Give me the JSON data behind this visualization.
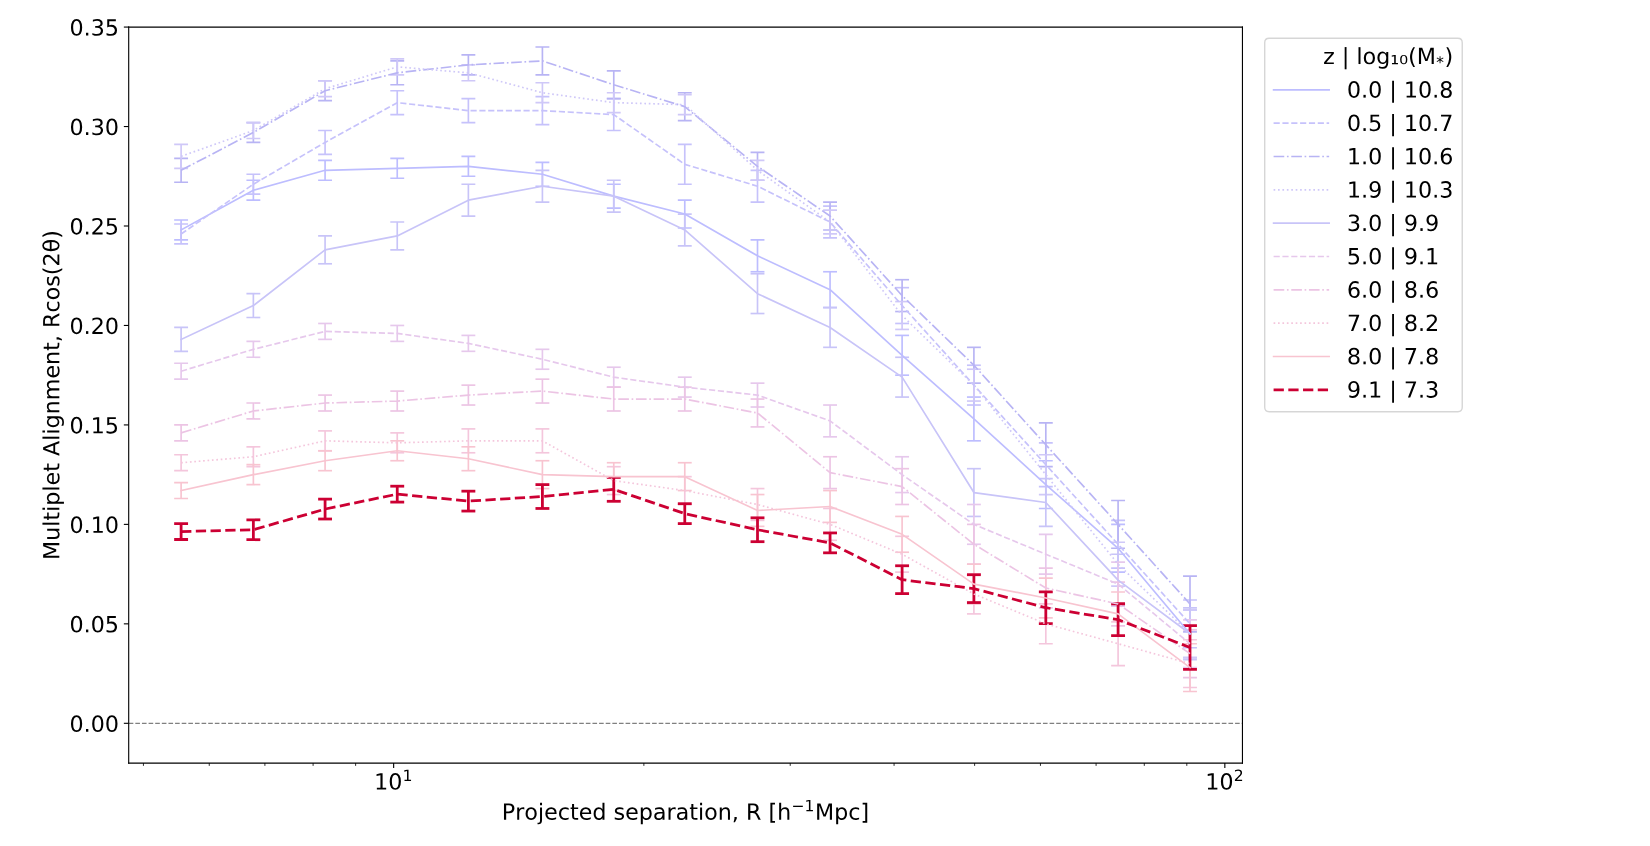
{
  "chart_data": {
    "type": "line",
    "xlabel": "Projected separation, R [h$^{−1}$Mpc]",
    "ylabel": "Multiplet Alignment, Rcos(2θ)",
    "legend_title": "z | log₁₀(M$_{*}$)",
    "legend": "right",
    "log": "x",
    "grid": false,
    "marker": "none",
    "x": [
      5.55,
      6.78,
      8.27,
      10.1,
      12.3,
      15.1,
      18.4,
      22.4,
      27.4,
      33.5,
      40.9,
      49.9,
      60.9,
      74.4,
      90.8
    ],
    "xlim": [
      4.8,
      105
    ],
    "xticks": [
      {
        "value": 10,
        "label": "10$^{1}$"
      },
      {
        "value": 100,
        "label": "10$^{2}$"
      }
    ],
    "ylim": [
      -0.02,
      0.35
    ],
    "yticks": [
      {
        "value": 0,
        "label": "0.00"
      },
      {
        "value": 0.05,
        "label": "0.05"
      },
      {
        "value": 0.1,
        "label": "0.10"
      },
      {
        "value": 0.15,
        "label": "0.15"
      },
      {
        "value": 0.2,
        "label": "0.20"
      },
      {
        "value": 0.25,
        "label": "0.25"
      },
      {
        "value": 0.3,
        "label": "0.30"
      },
      {
        "value": 0.35,
        "label": "0.35"
      }
    ],
    "ref_lines": [
      {
        "axis": "y",
        "value": 0,
        "color": "#808080",
        "line_style": "dashed"
      }
    ],
    "series": [
      {
        "name": "0.0 | 10.8",
        "color": "#bdbdff",
        "line_style": "solid",
        "values": [
          0.248,
          0.268,
          0.278,
          0.279,
          0.28,
          0.276,
          0.265,
          0.256,
          0.235,
          0.218,
          0.185,
          0.153,
          0.12,
          0.088,
          0.045
        ],
        "errors": [
          0.005,
          0.005,
          0.005,
          0.005,
          0.005,
          0.006,
          0.006,
          0.007,
          0.008,
          0.009,
          0.01,
          0.011,
          0.012,
          0.012,
          0.012
        ]
      },
      {
        "name": "0.5 | 10.7",
        "color": "#c6c2fb",
        "line_style": "dashed",
        "values": [
          0.246,
          0.271,
          0.292,
          0.312,
          0.308,
          0.308,
          0.306,
          0.281,
          0.27,
          0.252,
          0.21,
          0.17,
          0.13,
          0.09,
          0.05
        ],
        "errors": [
          0.005,
          0.005,
          0.006,
          0.006,
          0.006,
          0.007,
          0.008,
          0.01,
          0.008,
          0.008,
          0.009,
          0.01,
          0.011,
          0.012,
          0.012
        ]
      },
      {
        "name": "1.0 | 10.6",
        "color": "#b8b4f4",
        "line_style": "dashdot",
        "values": [
          0.278,
          0.297,
          0.318,
          0.327,
          0.331,
          0.333,
          0.321,
          0.31,
          0.28,
          0.255,
          0.215,
          0.18,
          0.14,
          0.1,
          0.06
        ],
        "errors": [
          0.006,
          0.005,
          0.005,
          0.006,
          0.005,
          0.007,
          0.007,
          0.007,
          0.007,
          0.007,
          0.008,
          0.009,
          0.011,
          0.012,
          0.014
        ]
      },
      {
        "name": "1.9 | 10.3",
        "color": "#cfc8f8",
        "line_style": "dotted",
        "values": [
          0.285,
          0.298,
          0.319,
          0.33,
          0.327,
          0.317,
          0.312,
          0.311,
          0.278,
          0.252,
          0.205,
          0.17,
          0.125,
          0.08,
          0.045
        ],
        "errors": [
          0.006,
          0.004,
          0.004,
          0.004,
          0.004,
          0.005,
          0.005,
          0.005,
          0.005,
          0.006,
          0.007,
          0.008,
          0.01,
          0.011,
          0.012
        ]
      },
      {
        "name": "3.0 | 9.9",
        "color": "#c8c4f8",
        "line_style": "solid",
        "values": [
          0.193,
          0.21,
          0.238,
          0.245,
          0.263,
          0.27,
          0.265,
          0.248,
          0.216,
          0.199,
          0.174,
          0.116,
          0.111,
          0.072,
          0.045
        ],
        "errors": [
          0.006,
          0.006,
          0.007,
          0.007,
          0.008,
          0.008,
          0.008,
          0.008,
          0.01,
          0.01,
          0.01,
          0.012,
          0.012,
          0.013,
          0.013
        ]
      },
      {
        "name": "5.0 | 9.1",
        "color": "#e6c8ec",
        "line_style": "dashed",
        "values": [
          0.177,
          0.188,
          0.197,
          0.196,
          0.191,
          0.183,
          0.174,
          0.169,
          0.165,
          0.152,
          0.125,
          0.1,
          0.085,
          0.07,
          0.04
        ],
        "errors": [
          0.004,
          0.004,
          0.004,
          0.004,
          0.004,
          0.005,
          0.005,
          0.005,
          0.006,
          0.008,
          0.009,
          0.01,
          0.01,
          0.011,
          0.012
        ]
      },
      {
        "name": "6.0 | 8.6",
        "color": "#ecc4e4",
        "line_style": "dashdot",
        "values": [
          0.146,
          0.157,
          0.161,
          0.162,
          0.165,
          0.167,
          0.163,
          0.163,
          0.156,
          0.126,
          0.119,
          0.09,
          0.068,
          0.06,
          0.035
        ],
        "errors": [
          0.004,
          0.004,
          0.004,
          0.005,
          0.005,
          0.006,
          0.006,
          0.006,
          0.007,
          0.008,
          0.009,
          0.01,
          0.01,
          0.011,
          0.012
        ]
      },
      {
        "name": "7.0 | 8.2",
        "color": "#f4c6dc",
        "line_style": "dotted",
        "values": [
          0.131,
          0.134,
          0.142,
          0.141,
          0.142,
          0.142,
          0.122,
          0.117,
          0.11,
          0.1,
          0.085,
          0.065,
          0.05,
          0.04,
          0.03
        ],
        "errors": [
          0.004,
          0.005,
          0.005,
          0.005,
          0.006,
          0.006,
          0.007,
          0.007,
          0.008,
          0.008,
          0.009,
          0.01,
          0.01,
          0.011,
          0.012
        ]
      },
      {
        "name": "8.0 | 7.8",
        "color": "#f8c4d0",
        "line_style": "solid",
        "values": [
          0.117,
          0.125,
          0.132,
          0.137,
          0.133,
          0.125,
          0.124,
          0.124,
          0.107,
          0.109,
          0.095,
          0.07,
          0.063,
          0.055,
          0.028
        ],
        "errors": [
          0.004,
          0.005,
          0.005,
          0.005,
          0.006,
          0.007,
          0.007,
          0.007,
          0.008,
          0.008,
          0.009,
          0.01,
          0.01,
          0.011,
          0.012
        ]
      },
      {
        "name": "9.1 | 7.3",
        "color": "#cc0033",
        "line_style": "dashed",
        "values": [
          0.0964,
          0.0973,
          0.1077,
          0.1152,
          0.1117,
          0.114,
          0.1176,
          0.1054,
          0.0973,
          0.0907,
          0.0722,
          0.0677,
          0.0581,
          0.0521,
          0.0381
        ],
        "errors": [
          0.004,
          0.005,
          0.005,
          0.004,
          0.005,
          0.006,
          0.006,
          0.005,
          0.006,
          0.005,
          0.007,
          0.007,
          0.008,
          0.008,
          0.011
        ]
      }
    ]
  }
}
